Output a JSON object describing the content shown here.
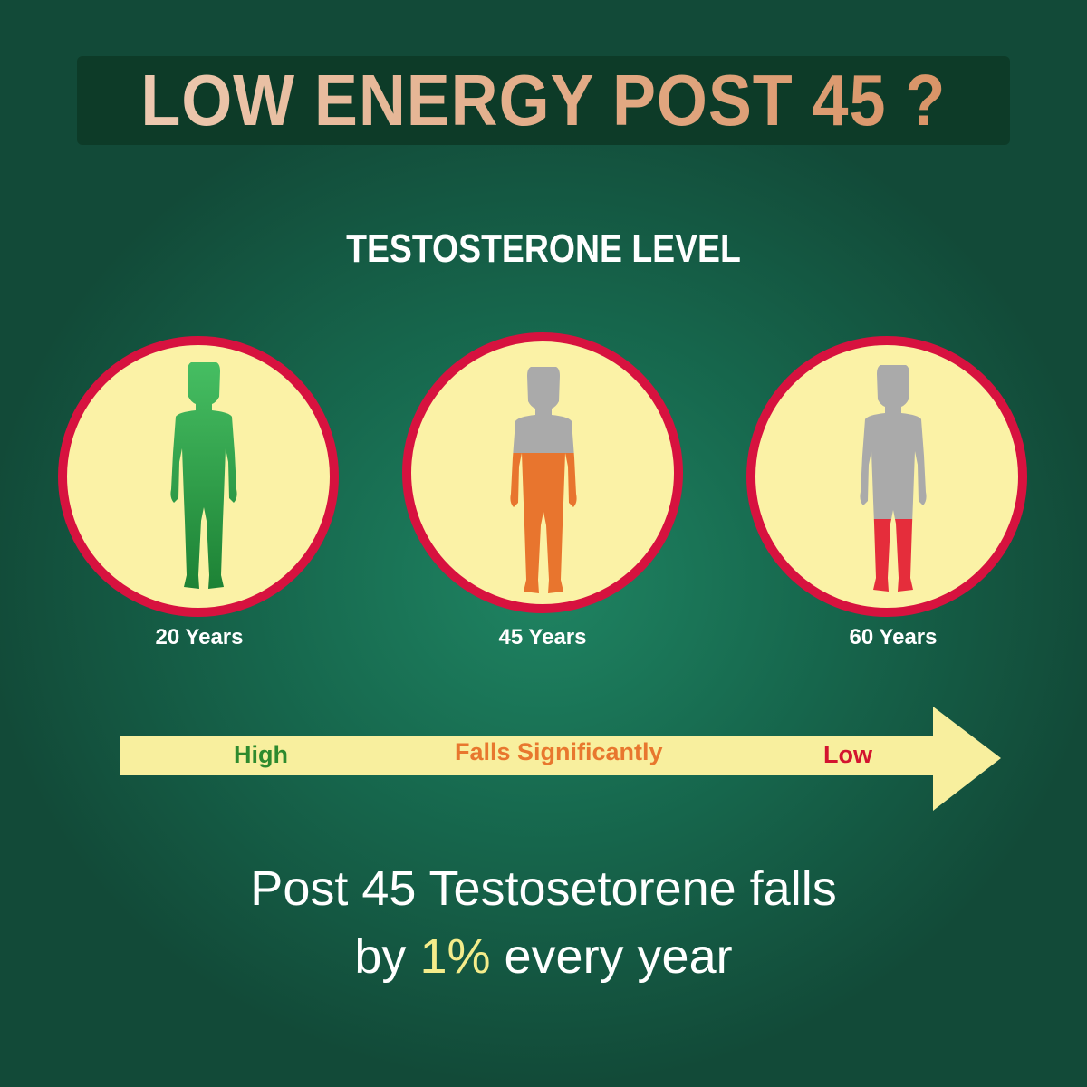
{
  "header": {
    "title": "LOW ENERGY POST 45 ?"
  },
  "section_title": "TESTOSTERONE LEVEL",
  "stages": [
    {
      "age": "20 Years",
      "figure_icon": "human-silhouette-icon",
      "affected_color": "#2fa84a",
      "affected_fraction": 1.0
    },
    {
      "age": "45 Years",
      "figure_icon": "human-silhouette-icon",
      "affected_color": "#e8752e",
      "affected_fraction": 0.62
    },
    {
      "age": "60 Years",
      "figure_icon": "human-silhouette-icon",
      "affected_color": "#e52d3b",
      "affected_fraction": 0.32
    }
  ],
  "arrow": {
    "labels": [
      {
        "text": "High",
        "color": "#2e8a2e"
      },
      {
        "text": "Falls Significantly",
        "color": "#e8772e"
      },
      {
        "text": "Low",
        "color": "#d3142f"
      }
    ]
  },
  "footer": {
    "line1": "Post 45 Testosetorene falls",
    "line2_prefix": "by",
    "line2_highlight": "1%",
    "line2_suffix": "every year"
  },
  "colors": {
    "ring": "#d7123f",
    "circle_fill": "#fbf2a6",
    "arrow": "#f8ef9e",
    "figure_grey": "#aaaaaa"
  }
}
